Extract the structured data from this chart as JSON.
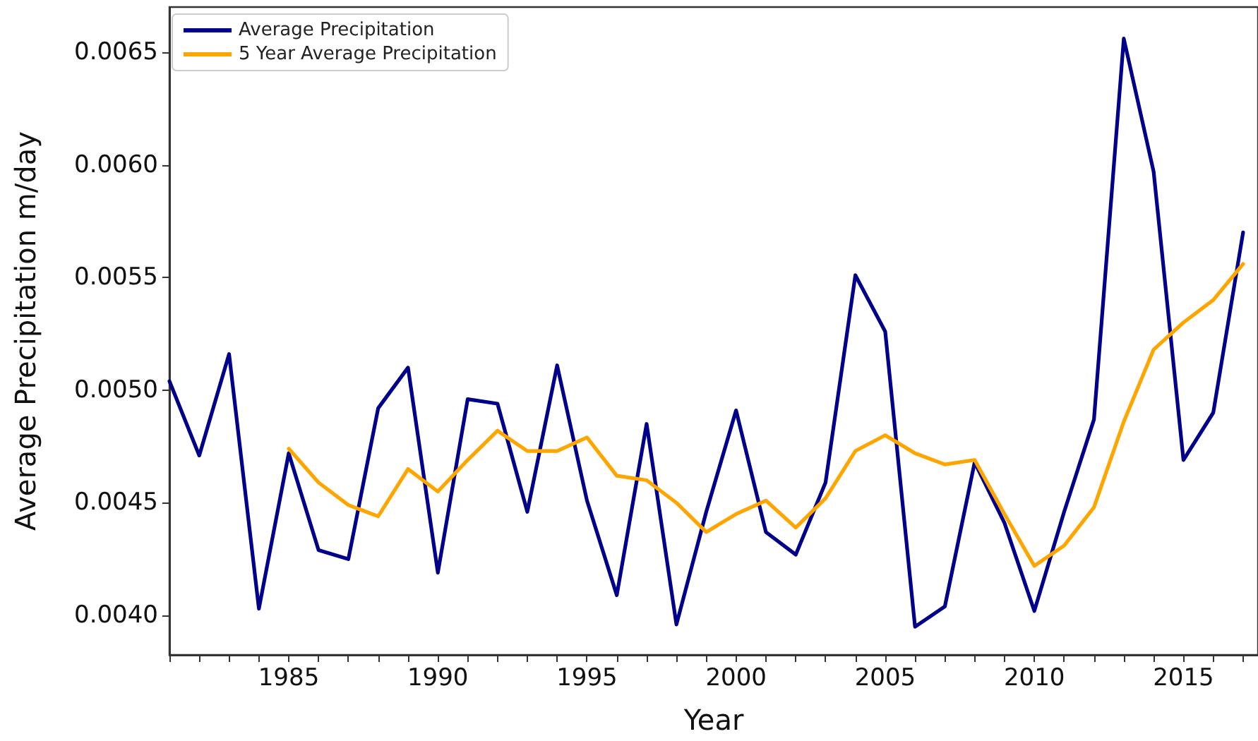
{
  "chart_data": {
    "type": "line",
    "xlabel": "Year",
    "ylabel": "Average Precipitation m/day",
    "x": [
      1981,
      1982,
      1983,
      1984,
      1985,
      1986,
      1987,
      1988,
      1989,
      1990,
      1991,
      1992,
      1993,
      1994,
      1995,
      1996,
      1997,
      1998,
      1999,
      2000,
      2001,
      2002,
      2003,
      2004,
      2005,
      2006,
      2007,
      2008,
      2009,
      2010,
      2011,
      2012,
      2013,
      2014,
      2015,
      2016,
      2017
    ],
    "series": [
      {
        "name": "Average Precipitation",
        "color": "#00008b",
        "values": [
          0.00504,
          0.00471,
          0.00516,
          0.00403,
          0.00472,
          0.00429,
          0.00425,
          0.00492,
          0.0051,
          0.00419,
          0.00496,
          0.00494,
          0.00446,
          0.00511,
          0.00451,
          0.00409,
          0.00485,
          0.00396,
          0.00446,
          0.00491,
          0.00437,
          0.00427,
          0.00459,
          0.00551,
          0.00526,
          0.00395,
          0.00404,
          0.00468,
          0.00441,
          0.00402,
          0.00446,
          0.00487,
          0.00656,
          0.00597,
          0.00469,
          0.0049,
          0.0057
        ]
      },
      {
        "name": "5 Year Average Precipitation",
        "color": "#ffa500",
        "values": [
          null,
          null,
          null,
          null,
          0.00474,
          0.00459,
          0.00449,
          0.00444,
          0.00465,
          0.00455,
          0.00469,
          0.00482,
          0.00473,
          0.00473,
          0.00479,
          0.00462,
          0.0046,
          0.0045,
          0.00437,
          0.00445,
          0.00451,
          0.00439,
          0.00452,
          0.00473,
          0.0048,
          0.00472,
          0.00467,
          0.00469,
          0.00445,
          0.00422,
          0.00431,
          0.00448,
          0.00486,
          0.00518,
          0.0053,
          0.0054,
          0.00556
        ]
      }
    ],
    "xlim": [
      1981,
      2017.5
    ],
    "xticks": [
      {
        "value": 1981,
        "label": null
      },
      {
        "value": 1982,
        "label": null
      },
      {
        "value": 1983,
        "label": null
      },
      {
        "value": 1984,
        "label": null
      },
      1985,
      {
        "value": 1986,
        "label": null
      },
      {
        "value": 1987,
        "label": null
      },
      {
        "value": 1988,
        "label": null
      },
      {
        "value": 1989,
        "label": null
      },
      1990,
      {
        "value": 1991,
        "label": null
      },
      {
        "value": 1992,
        "label": null
      },
      {
        "value": 1993,
        "label": null
      },
      {
        "value": 1994,
        "label": null
      },
      1995,
      {
        "value": 1996,
        "label": null
      },
      {
        "value": 1997,
        "label": null
      },
      {
        "value": 1998,
        "label": null
      },
      {
        "value": 1999,
        "label": null
      },
      2000,
      {
        "value": 2001,
        "label": null
      },
      {
        "value": 2002,
        "label": null
      },
      {
        "value": 2003,
        "label": null
      },
      {
        "value": 2004,
        "label": null
      },
      2005,
      {
        "value": 2006,
        "label": null
      },
      {
        "value": 2007,
        "label": null
      },
      {
        "value": 2008,
        "label": null
      },
      {
        "value": 2009,
        "label": null
      },
      2010,
      {
        "value": 2011,
        "label": null
      },
      {
        "value": 2012,
        "label": null
      },
      {
        "value": 2013,
        "label": null
      },
      {
        "value": 2014,
        "label": null
      },
      2015,
      {
        "value": 2016,
        "label": null
      },
      {
        "value": 2017,
        "label": null
      }
    ],
    "ylim": [
      0.003825,
      0.0067
    ],
    "yticks": [
      {
        "value": 0.004,
        "label": "0.0040"
      },
      {
        "value": 0.0045,
        "label": "0.0045"
      },
      {
        "value": 0.005,
        "label": "0.0050"
      },
      {
        "value": 0.0055,
        "label": "0.0055"
      },
      {
        "value": 0.006,
        "label": "0.0060"
      },
      {
        "value": 0.0065,
        "label": "0.0065"
      }
    ],
    "grid": false,
    "legend": "top left",
    "line_style": "solid"
  }
}
